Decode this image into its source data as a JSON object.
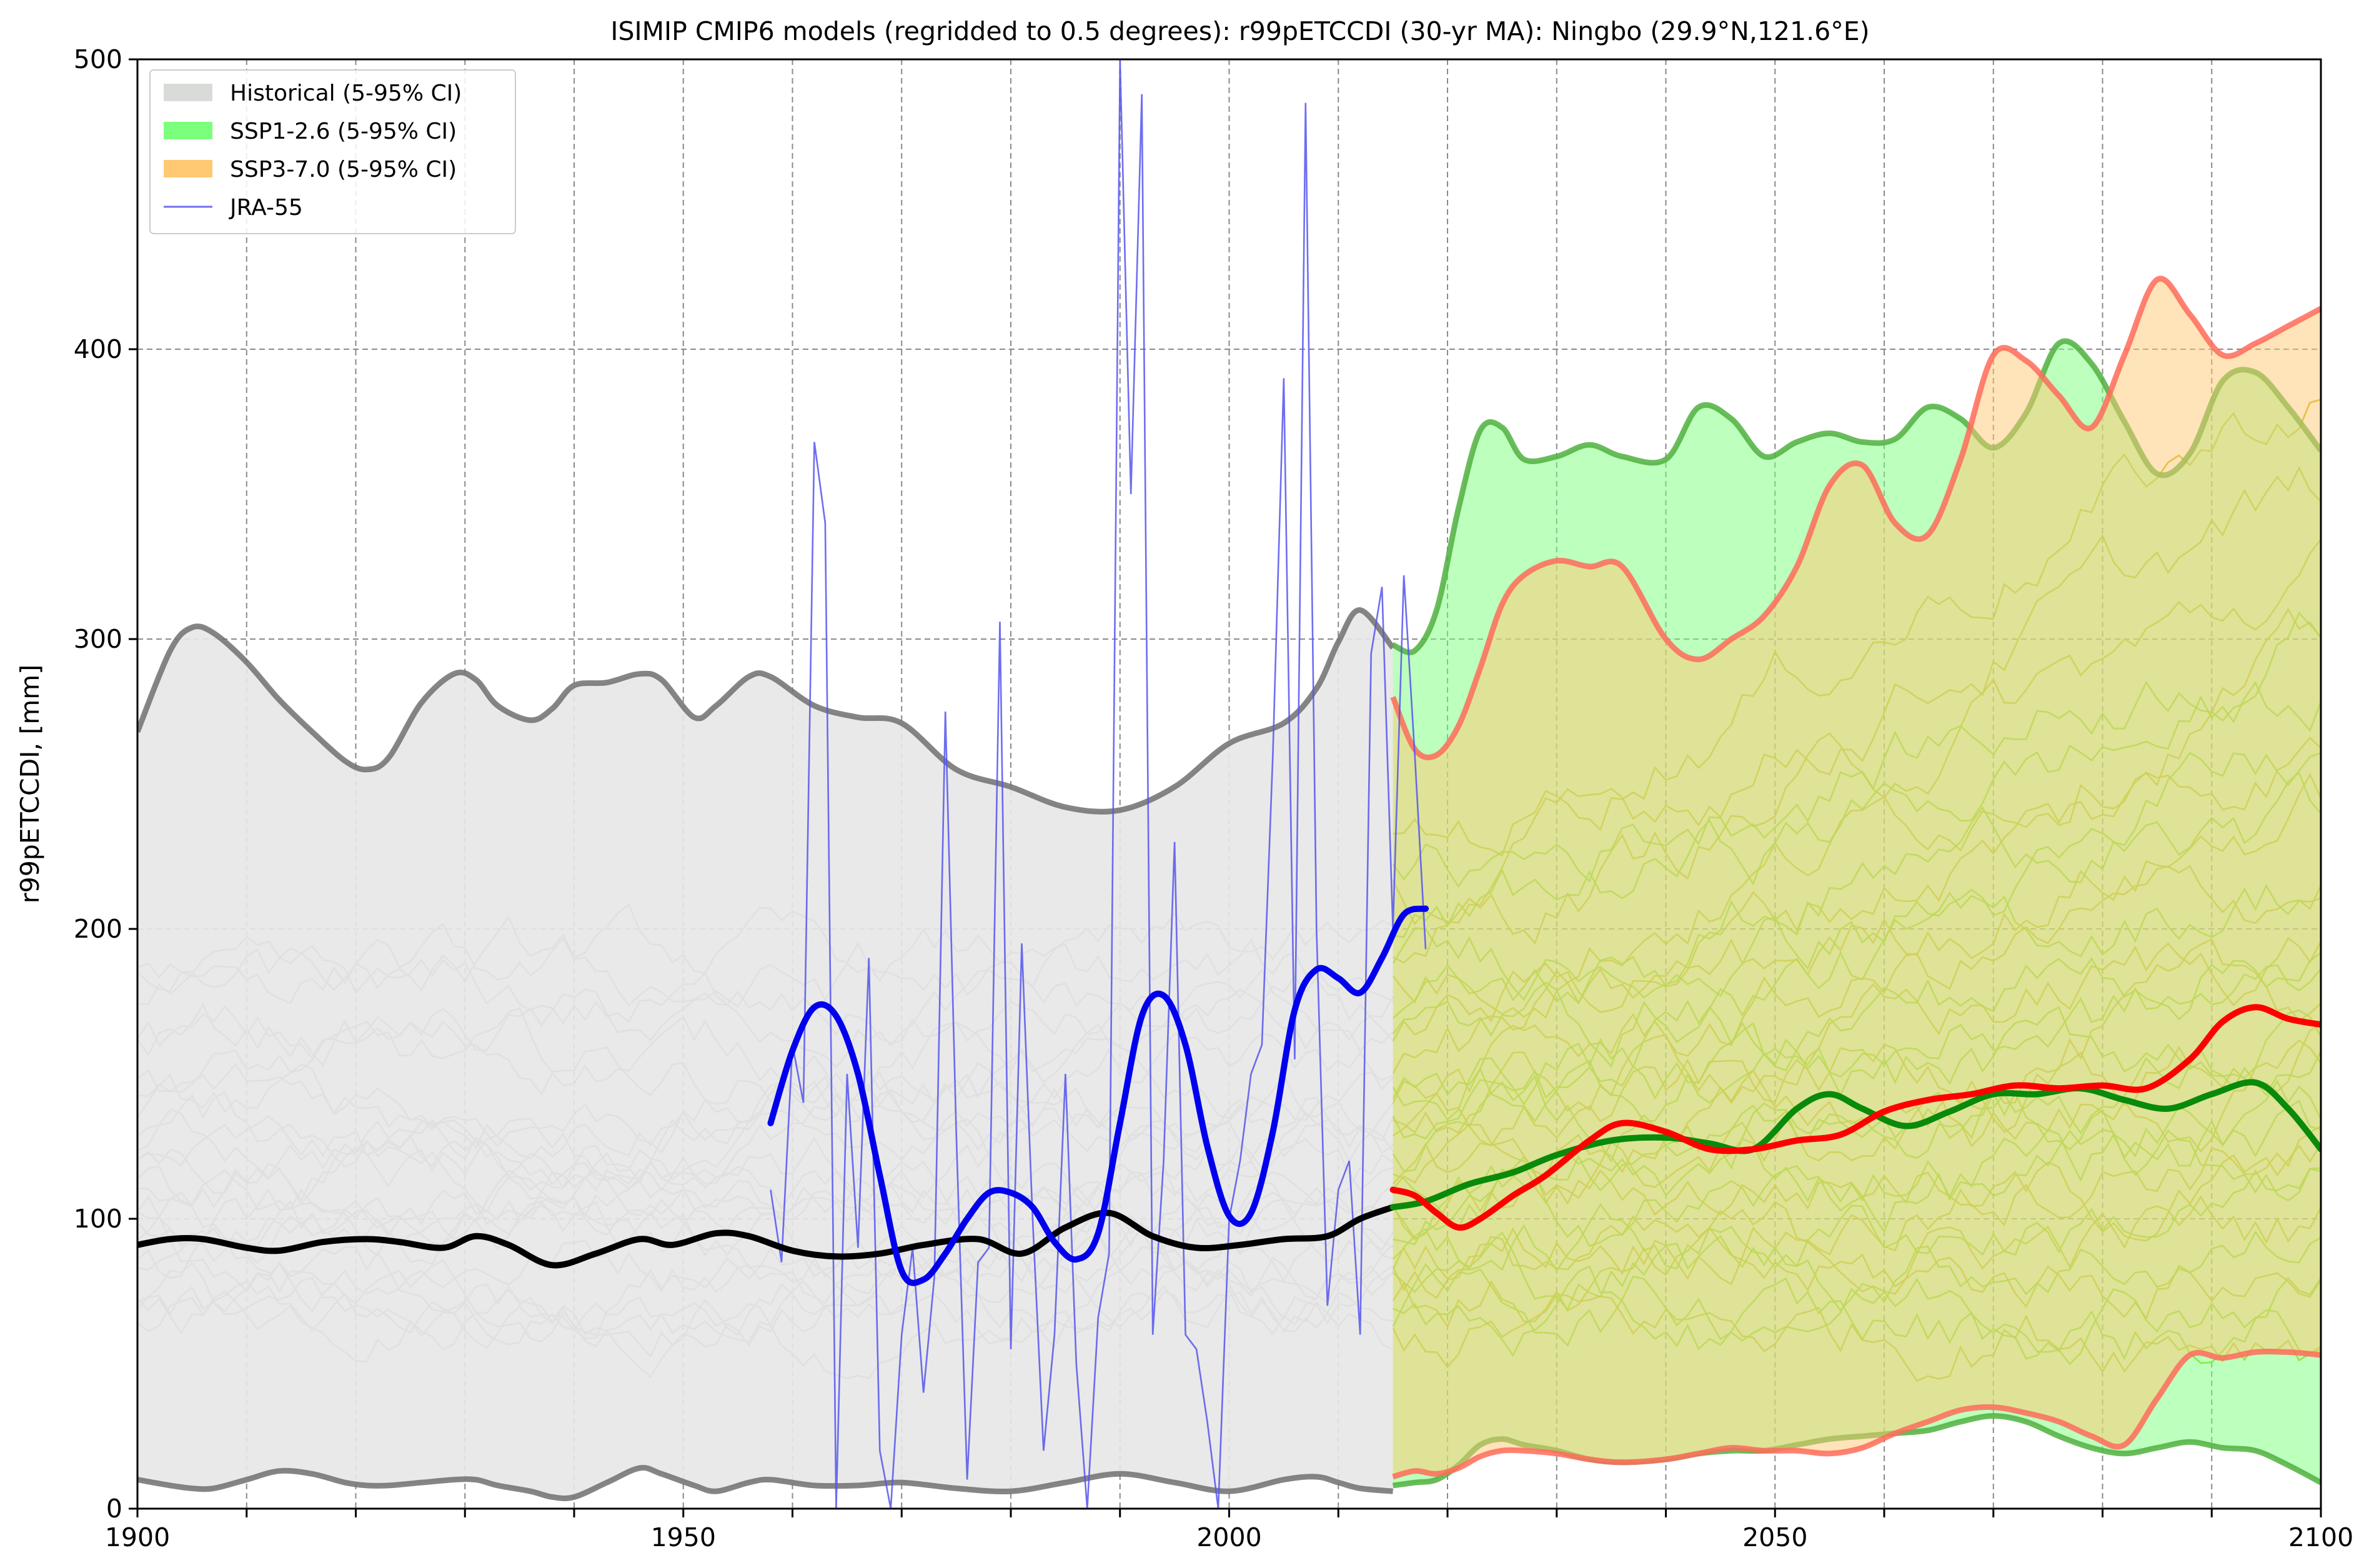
{
  "chart_data": {
    "type": "line",
    "title": "ISIMIP CMIP6 models (regridded to 0.5 degrees): r99pETCCDI (30-yr MA): Ningbo (29.9°N,121.6°E)",
    "ylabel": "r99pETCCDI, [mm]",
    "xlabel": "",
    "xlim": [
      1900,
      2100
    ],
    "ylim": [
      0,
      500
    ],
    "xticks": [
      "1900",
      "1950",
      "2000",
      "2050",
      "2100"
    ],
    "yticks": [
      "0",
      "100",
      "200",
      "300",
      "400",
      "500"
    ],
    "grid": true,
    "legend_position": "top-left",
    "legend": [
      {
        "label": "Historical (5-95% CI)",
        "color": "#d9dbd9",
        "kind": "patch"
      },
      {
        "label": "SSP1-2.6 (5-95% CI)",
        "color": "#7cff7c",
        "kind": "patch"
      },
      {
        "label": "SSP3-7.0 (5-95% CI)",
        "color": "#ffc873",
        "kind": "patch"
      },
      {
        "label": "JRA-55",
        "color": "#7070ee",
        "kind": "line"
      }
    ],
    "bands": [
      {
        "name": "Historical (5-95% CI)",
        "fill": "#e7e7e7",
        "edge": "#707070",
        "x": [
          1900,
          1903,
          1905,
          1907,
          1910,
          1913,
          1916,
          1919,
          1921,
          1923,
          1926,
          1929,
          1931,
          1933,
          1936,
          1938,
          1940,
          1943,
          1946,
          1948,
          1951,
          1953,
          1956,
          1958,
          1962,
          1966,
          1970,
          1975,
          1980,
          1985,
          1990,
          1995,
          2000,
          2005,
          2008,
          2010,
          2012,
          2015
        ],
        "upper": [
          268,
          296,
          304,
          302,
          292,
          279,
          268,
          258,
          255,
          259,
          278,
          288,
          286,
          277,
          272,
          276,
          284,
          285,
          288,
          286,
          273,
          277,
          287,
          287,
          277,
          273,
          271,
          255,
          249,
          242,
          241,
          249,
          264,
          271,
          283,
          299,
          310,
          297
        ],
        "lower": [
          10,
          8,
          7,
          7,
          10,
          13,
          12,
          9,
          8,
          8,
          9,
          10,
          10,
          8,
          6,
          4,
          4,
          9,
          14,
          12,
          8,
          6,
          9,
          10,
          8,
          8,
          9,
          7,
          6,
          9,
          12,
          9,
          6,
          10,
          11,
          9,
          7,
          6
        ]
      },
      {
        "name": "SSP1-2.6 (5-95% CI)",
        "fill": "#7cff7c",
        "edge": "#50b040",
        "x": [
          2015,
          2017,
          2019,
          2021,
          2023,
          2025,
          2027,
          2030,
          2033,
          2036,
          2040,
          2043,
          2046,
          2049,
          2052,
          2055,
          2058,
          2061,
          2064,
          2067,
          2070,
          2073,
          2076,
          2079,
          2082,
          2085,
          2088,
          2091,
          2094,
          2097,
          2100
        ],
        "upper": [
          298,
          296,
          310,
          345,
          372,
          373,
          362,
          363,
          367,
          363,
          362,
          380,
          376,
          363,
          368,
          371,
          368,
          369,
          380,
          376,
          366,
          378,
          402,
          395,
          375,
          357,
          364,
          389,
          392,
          380,
          365
        ],
        "lower": [
          8,
          9,
          10,
          15,
          22,
          24,
          22,
          20,
          17,
          16,
          17,
          19,
          20,
          20,
          22,
          24,
          25,
          26,
          27,
          30,
          32,
          30,
          25,
          21,
          19,
          21,
          23,
          21,
          20,
          15,
          9
        ]
      },
      {
        "name": "SSP3-7.0 (5-95% CI)",
        "fill": "#ffc873",
        "edge": "#ff6b5b",
        "x": [
          2015,
          2017,
          2019,
          2021,
          2023,
          2025,
          2027,
          2030,
          2033,
          2036,
          2040,
          2043,
          2046,
          2049,
          2052,
          2055,
          2058,
          2061,
          2064,
          2067,
          2070,
          2073,
          2076,
          2079,
          2082,
          2085,
          2088,
          2091,
          2094,
          2097,
          2100
        ],
        "upper": [
          280,
          262,
          260,
          270,
          290,
          312,
          322,
          327,
          325,
          325,
          300,
          293,
          300,
          308,
          325,
          353,
          360,
          340,
          336,
          362,
          398,
          396,
          384,
          373,
          398,
          424,
          412,
          398,
          402,
          408,
          414
        ],
        "lower": [
          11,
          13,
          12,
          14,
          18,
          20,
          20,
          19,
          17,
          16,
          17,
          19,
          21,
          20,
          20,
          19,
          21,
          26,
          30,
          34,
          35,
          33,
          30,
          25,
          22,
          38,
          53,
          52,
          54,
          54,
          53
        ]
      }
    ],
    "mean_series": [
      {
        "name": "Historical mean",
        "color": "#000000",
        "x": [
          1900,
          1903,
          1906,
          1910,
          1913,
          1917,
          1921,
          1924,
          1928,
          1931,
          1934,
          1938,
          1942,
          1946,
          1949,
          1953,
          1956,
          1960,
          1964,
          1968,
          1972,
          1977,
          1981,
          1985,
          1989,
          1993,
          1997,
          2001,
          2005,
          2009,
          2012,
          2015
        ],
        "y": [
          91,
          93,
          93,
          90,
          89,
          92,
          93,
          92,
          90,
          94,
          91,
          84,
          88,
          93,
          91,
          95,
          94,
          89,
          87,
          88,
          91,
          93,
          88,
          97,
          102,
          94,
          90,
          91,
          93,
          94,
          100,
          104
        ]
      },
      {
        "name": "SSP1-2.6 mean",
        "color": "#0a8a0a",
        "x": [
          2015,
          2018,
          2022,
          2026,
          2030,
          2035,
          2040,
          2044,
          2048,
          2052,
          2055,
          2058,
          2062,
          2066,
          2070,
          2074,
          2078,
          2082,
          2086,
          2090,
          2094,
          2097,
          2100
        ],
        "y": [
          104,
          106,
          112,
          116,
          122,
          127,
          128,
          126,
          124,
          138,
          143,
          138,
          132,
          137,
          143,
          143,
          145,
          141,
          138,
          143,
          147,
          138,
          124
        ]
      },
      {
        "name": "SSP3-7.0 mean",
        "color": "#ff0000",
        "x": [
          2015,
          2017,
          2019,
          2021,
          2023,
          2026,
          2029,
          2033,
          2036,
          2040,
          2044,
          2048,
          2052,
          2056,
          2060,
          2064,
          2068,
          2072,
          2076,
          2080,
          2084,
          2088,
          2091,
          2094,
          2097,
          2100
        ],
        "y": [
          110,
          108,
          102,
          97,
          100,
          108,
          115,
          127,
          133,
          130,
          124,
          124,
          127,
          129,
          137,
          141,
          143,
          146,
          145,
          146,
          145,
          155,
          168,
          173,
          169,
          167
        ]
      },
      {
        "name": "JRA-55 30-yr MA",
        "color": "#0000ee",
        "x": [
          1958,
          1960,
          1962,
          1964,
          1966,
          1968,
          1970,
          1972,
          1974,
          1976,
          1978,
          1980,
          1982,
          1984,
          1986,
          1988,
          1990,
          1992,
          1994,
          1996,
          1998,
          2000,
          2002,
          2004,
          2006,
          2008,
          2010,
          2012,
          2014,
          2016,
          2018
        ],
        "y": [
          133,
          158,
          173,
          170,
          150,
          115,
          82,
          79,
          88,
          100,
          109,
          109,
          104,
          92,
          86,
          95,
          133,
          170,
          177,
          160,
          125,
          101,
          102,
          130,
          172,
          186,
          183,
          178,
          190,
          205,
          207
        ]
      }
    ],
    "observed": {
      "name": "JRA-55",
      "color": "#5555ee",
      "x": [
        1958,
        1959,
        1960,
        1961,
        1962,
        1963,
        1964,
        1965,
        1966,
        1967,
        1968,
        1969,
        1970,
        1971,
        1972,
        1973,
        1974,
        1975,
        1976,
        1977,
        1978,
        1979,
        1980,
        1981,
        1982,
        1983,
        1984,
        1985,
        1986,
        1987,
        1988,
        1989,
        1990,
        1991,
        1992,
        1993,
        1994,
        1995,
        1996,
        1997,
        1998,
        1999,
        2000,
        2001,
        2002,
        2003,
        2004,
        2005,
        2006,
        2007,
        2008,
        2009,
        2010,
        2011,
        2012,
        2013,
        2014,
        2015,
        2016,
        2017,
        2018
      ],
      "y": [
        110,
        85,
        160,
        140,
        368,
        340,
        0,
        150,
        90,
        190,
        20,
        0,
        60,
        90,
        40,
        80,
        275,
        130,
        10,
        85,
        90,
        306,
        55,
        195,
        100,
        20,
        60,
        150,
        50,
        0,
        66,
        88,
        500,
        350,
        488,
        60,
        120,
        230,
        60,
        55,
        30,
        0,
        100,
        120,
        150,
        160,
        260,
        390,
        155,
        485,
        200,
        70,
        110,
        120,
        60,
        295,
        318,
        200,
        322,
        260,
        193
      ]
    },
    "model_runs": {
      "historical": {
        "color": "#a3a3a3",
        "x_start": 1900,
        "x_end": 2015,
        "levels": [
          62,
          66,
          70,
          74,
          80,
          86,
          90,
          96,
          100,
          104,
          108,
          112,
          118,
          122,
          128,
          132,
          138,
          142,
          150,
          158,
          165,
          172,
          180,
          188
        ]
      },
      "ssp126": {
        "color": "#7fd400",
        "x_start": 2015,
        "x_end": 2100,
        "start_levels": [
          62,
          70,
          80,
          90,
          100,
          108,
          116,
          124,
          132,
          140,
          150,
          160,
          170,
          185,
          200,
          215
        ],
        "end_levels": [
          60,
          78,
          92,
          104,
          118,
          130,
          142,
          155,
          168,
          182,
          200,
          222,
          240,
          262,
          288,
          310
        ]
      },
      "ssp370": {
        "color": "#c8b000",
        "x_start": 2015,
        "x_end": 2100,
        "start_levels": [
          60,
          72,
          82,
          94,
          104,
          112,
          120,
          128,
          136,
          146,
          156,
          168,
          180,
          196,
          210,
          225
        ],
        "end_levels": [
          66,
          84,
          98,
          112,
          128,
          146,
          162,
          180,
          200,
          222,
          248,
          272,
          300,
          330,
          360,
          398
        ]
      }
    }
  }
}
